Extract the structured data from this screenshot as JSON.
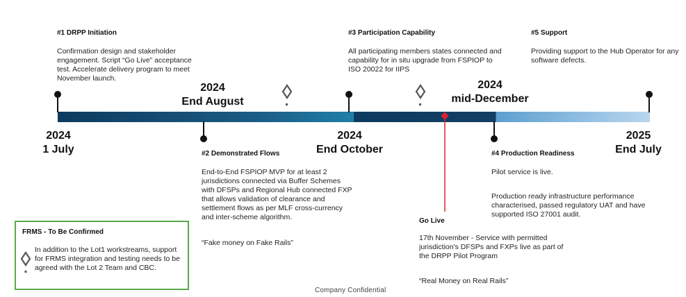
{
  "milestones": {
    "m1": {
      "title": "#1 DRPP Initiation",
      "text": "Confirmation design and stakeholder engagement. Script “Go Live” acceptance test. Accelerate delivery program to meet November launch."
    },
    "m2": {
      "title": "#2 Demonstrated Flows",
      "text": "End-to-End FSPIOP MVP for at least 2 jurisdictions connected via Buffer Schemes with DFSPs and Regional Hub connected FXP that allows validation of clearance and settlement flows as per MLF cross-currency and inter-scheme algorithm.",
      "quote": "“Fake money on Fake Rails”"
    },
    "m3": {
      "title": "#3 Participation Capability",
      "text": "All participating members states connected and capability for in situ upgrade from FSPIOP to ISO 20022 for IIPS"
    },
    "m4": {
      "title": "#4 Production Readiness",
      "text1": "Pilot service is live.",
      "text2": "Production ready infrastructure performance characterised, passed regulatory UAT and have supported ISO 27001 audit."
    },
    "m5": {
      "title": "#5 Support",
      "text": "Providing support to the Hub Operator for any software defects."
    },
    "golive": {
      "title": "Go Live",
      "text": "17th November - Service with permitted jurisdiction's DFSPs and FXPs live as part of the DRPP Pilot Program",
      "quote": "“Real Money on Real Rails”"
    }
  },
  "dates": {
    "d1": {
      "year": "2024",
      "label": "1 July"
    },
    "d2": {
      "year": "2024",
      "label": "End August"
    },
    "d3": {
      "year": "2024",
      "label": "End October"
    },
    "d4": {
      "year": "2024",
      "label": "mid-December"
    },
    "d5": {
      "year": "2025",
      "label": "End July"
    }
  },
  "frms": {
    "title": "FRMS - To Be Confirmed",
    "text": "In addition to the Lot1 workstreams, support for FRMS integration and testing needs to be agreed with the Lot 2 Team and CBC."
  },
  "footer": {
    "confidential": "Company  Confidential"
  },
  "colors": {
    "bar_dark": "#0d3b5e",
    "bar_mid": "#1f7fa8",
    "bar_light": "#9cc4e4",
    "golive_line": "#e0202a",
    "frms_border": "#59a84a",
    "diamond": "#555555"
  },
  "icons": [
    "diamond-marker-icon",
    "diamond-marker-icon",
    "diamond-marker-icon"
  ]
}
